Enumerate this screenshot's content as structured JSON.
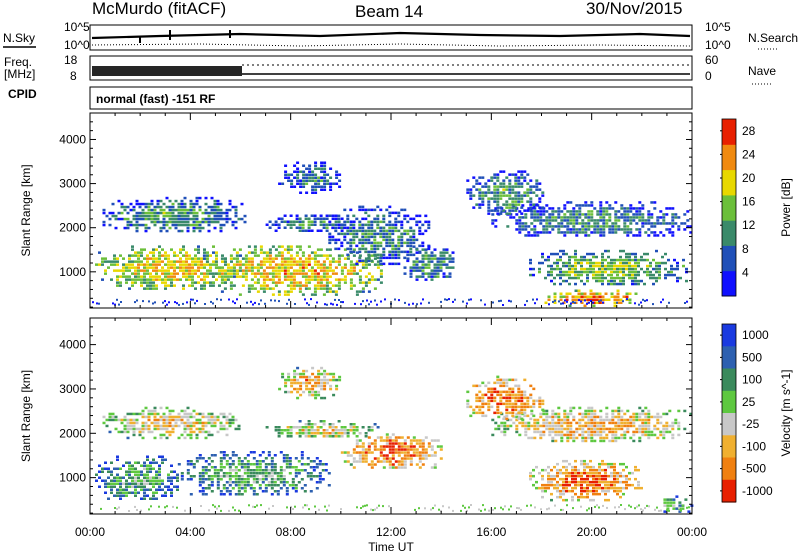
{
  "header": {
    "station": "McMurdo (fitACF)",
    "beam": "Beam 14",
    "date": "30/Nov/2015"
  },
  "top_panels": {
    "nsky_label": "N.Sky",
    "nsearch_label": "N.Search",
    "freq_label_1": "Freq.",
    "freq_label_2": "[MHz]",
    "nave_label": "Nave",
    "cpid_label": "CPID",
    "cpid_value": "normal (fast) -151 RF",
    "noise_ticks_left": [
      "10^5",
      "10^0"
    ],
    "noise_ticks_right": [
      "10^5",
      "10^0"
    ],
    "freq_ticks": [
      "18",
      "8"
    ],
    "nave_ticks": [
      "60",
      "0"
    ]
  },
  "chart_data": [
    {
      "type": "heatmap",
      "name": "Power",
      "x_ticks": [
        "00:00",
        "04:00",
        "08:00",
        "12:00",
        "16:00",
        "20:00",
        "00:00"
      ],
      "xlabel": "Time UT",
      "ylabel": "Slant Range [km]",
      "xlim_hours": [
        0,
        24
      ],
      "ylim": [
        180,
        4600
      ],
      "y_ticks": [
        1000,
        2000,
        3000,
        4000
      ],
      "colorbar": {
        "label": "Power [dB]",
        "ticks": [
          4,
          8,
          12,
          16,
          20,
          24,
          28
        ],
        "range": [
          0,
          30
        ],
        "colors": [
          "#1010ff",
          "#2050b8",
          "#3a8a6a",
          "#6bbf3a",
          "#e8d800",
          "#f08a10",
          "#e82000"
        ]
      },
      "regions": [
        {
          "t": [
            0.2,
            6.0
          ],
          "r": [
            600,
            1600
          ],
          "level": 0.55
        },
        {
          "t": [
            4.5,
            11.6
          ],
          "r": [
            500,
            1600
          ],
          "level": 0.6
        },
        {
          "t": [
            0.5,
            6.2
          ],
          "r": [
            1900,
            2700
          ],
          "level": 0.3
        },
        {
          "t": [
            7.0,
            10.5
          ],
          "r": [
            1900,
            2300
          ],
          "level": 0.25
        },
        {
          "t": [
            9.5,
            13.5
          ],
          "r": [
            1200,
            2500
          ],
          "level": 0.25
        },
        {
          "t": [
            12.5,
            14.5
          ],
          "r": [
            800,
            1600
          ],
          "level": 0.3
        },
        {
          "t": [
            17.5,
            23.8
          ],
          "r": [
            700,
            1500
          ],
          "level": 0.4
        },
        {
          "t": [
            18.0,
            22.0
          ],
          "r": [
            250,
            600
          ],
          "level": 0.7
        },
        {
          "t": [
            16.0,
            24.0
          ],
          "r": [
            1800,
            2600
          ],
          "level": 0.25
        },
        {
          "t": [
            15.0,
            18.0
          ],
          "r": [
            2300,
            3300
          ],
          "level": 0.3
        },
        {
          "t": [
            7.5,
            10.0
          ],
          "r": [
            2800,
            3500
          ],
          "level": 0.2
        }
      ]
    },
    {
      "type": "heatmap",
      "name": "Velocity",
      "x_ticks": [
        "00:00",
        "04:00",
        "08:00",
        "12:00",
        "16:00",
        "20:00",
        "00:00"
      ],
      "xlabel": "Time UT",
      "ylabel": "Slant Range [km]",
      "xlim_hours": [
        0,
        24
      ],
      "ylim": [
        180,
        4600
      ],
      "y_ticks": [
        1000,
        2000,
        3000,
        4000
      ],
      "colorbar": {
        "label": "Velocity [m s^-1]",
        "ticks": [
          "1000",
          "500",
          "100",
          "25",
          "-25",
          "-100",
          "-500",
          "-1000"
        ],
        "colors": [
          "#1a3ae0",
          "#2d60b0",
          "#3a8a5c",
          "#5ec840",
          "#c8c8c8",
          "#f0b030",
          "#f08010",
          "#e82000"
        ]
      },
      "regions": [
        {
          "t": [
            0.2,
            3.5
          ],
          "r": [
            500,
            1500
          ],
          "level": 0.28
        },
        {
          "t": [
            3.5,
            9.5
          ],
          "r": [
            600,
            1600
          ],
          "level": 0.3
        },
        {
          "t": [
            7.0,
            11.5
          ],
          "r": [
            1900,
            2300
          ],
          "level": 0.5
        },
        {
          "t": [
            0.5,
            6.0
          ],
          "r": [
            1900,
            2600
          ],
          "level": 0.55
        },
        {
          "t": [
            10.0,
            14.0
          ],
          "r": [
            1200,
            2000
          ],
          "level": 0.72
        },
        {
          "t": [
            17.5,
            22.0
          ],
          "r": [
            500,
            1400
          ],
          "level": 0.72
        },
        {
          "t": [
            16.0,
            24.0
          ],
          "r": [
            1800,
            2600
          ],
          "level": 0.6
        },
        {
          "t": [
            22.5,
            24.0
          ],
          "r": [
            250,
            600
          ],
          "level": 0.3
        },
        {
          "t": [
            15.0,
            18.0
          ],
          "r": [
            2300,
            3300
          ],
          "level": 0.72
        },
        {
          "t": [
            7.5,
            10.0
          ],
          "r": [
            2800,
            3500
          ],
          "level": 0.6
        }
      ]
    }
  ]
}
